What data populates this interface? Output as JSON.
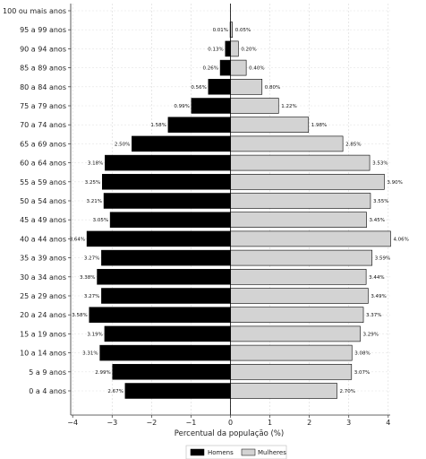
{
  "chart_data": {
    "type": "bar",
    "orientation": "horizontal",
    "categories": [
      "100 ou mais anos",
      "95 a 99 anos",
      "90 a 94 anos",
      "85 a 89 anos",
      "80 a 84 anos",
      "75 a 79 anos",
      "70 a 74 anos",
      "65 a 69 anos",
      "60 a 64 anos",
      "55 a 59 anos",
      "50 a 54 anos",
      "45 a 49 anos",
      "40 a 44 anos",
      "35 a 39 anos",
      "30 a 34 anos",
      "25 a 29 anos",
      "20 a 24 anos",
      "15 a 19 anos",
      "10 a 14 anos",
      "5 a 9 anos",
      "0 a 4 anos"
    ],
    "series": [
      {
        "name": "Homens",
        "color": "#000000",
        "values": [
          0,
          0.01,
          0.13,
          0.26,
          0.56,
          0.99,
          1.58,
          2.5,
          3.18,
          3.25,
          3.21,
          3.05,
          3.64,
          3.27,
          3.38,
          3.27,
          3.58,
          3.19,
          3.31,
          2.99,
          2.67
        ],
        "labels": [
          "",
          "0.01%",
          "0.13%",
          "0.26%",
          "0.56%",
          "0.99%",
          "1.58%",
          "2.50%",
          "3.18%",
          "3.25%",
          "3.21%",
          "3.05%",
          "3.64%",
          "3.27%",
          "3.38%",
          "3.27%",
          "3.58%",
          "3.19%",
          "3.31%",
          "2.99%",
          "2.67%"
        ]
      },
      {
        "name": "Mulheres",
        "color": "#d3d3d3",
        "values": [
          0,
          0.05,
          0.2,
          0.4,
          0.8,
          1.22,
          1.98,
          2.85,
          3.53,
          3.9,
          3.55,
          3.45,
          4.06,
          3.59,
          3.44,
          3.49,
          3.37,
          3.29,
          3.08,
          3.07,
          2.7
        ],
        "labels": [
          "",
          "0.05%",
          "0.20%",
          "0.40%",
          "0.80%",
          "1.22%",
          "1.98%",
          "2.85%",
          "3.53%",
          "3.90%",
          "3.55%",
          "3.45%",
          "4.06%",
          "3.59%",
          "3.44%",
          "3.49%",
          "3.37%",
          "3.29%",
          "3.08%",
          "3.07%",
          "2.70%"
        ]
      }
    ],
    "xlabel": "Percentual da população (%)",
    "xticks": [
      "−4",
      "−3",
      "−2",
      "−1",
      "0",
      "1",
      "2",
      "3",
      "4"
    ],
    "xtick_values": [
      -4,
      -3,
      -2,
      -1,
      0,
      1,
      2,
      3,
      4
    ],
    "xlim": [
      -4.05,
      4.05
    ],
    "grid": true,
    "legend_position": "bottom-center",
    "legend": [
      "Homens",
      "Mulheres"
    ]
  }
}
